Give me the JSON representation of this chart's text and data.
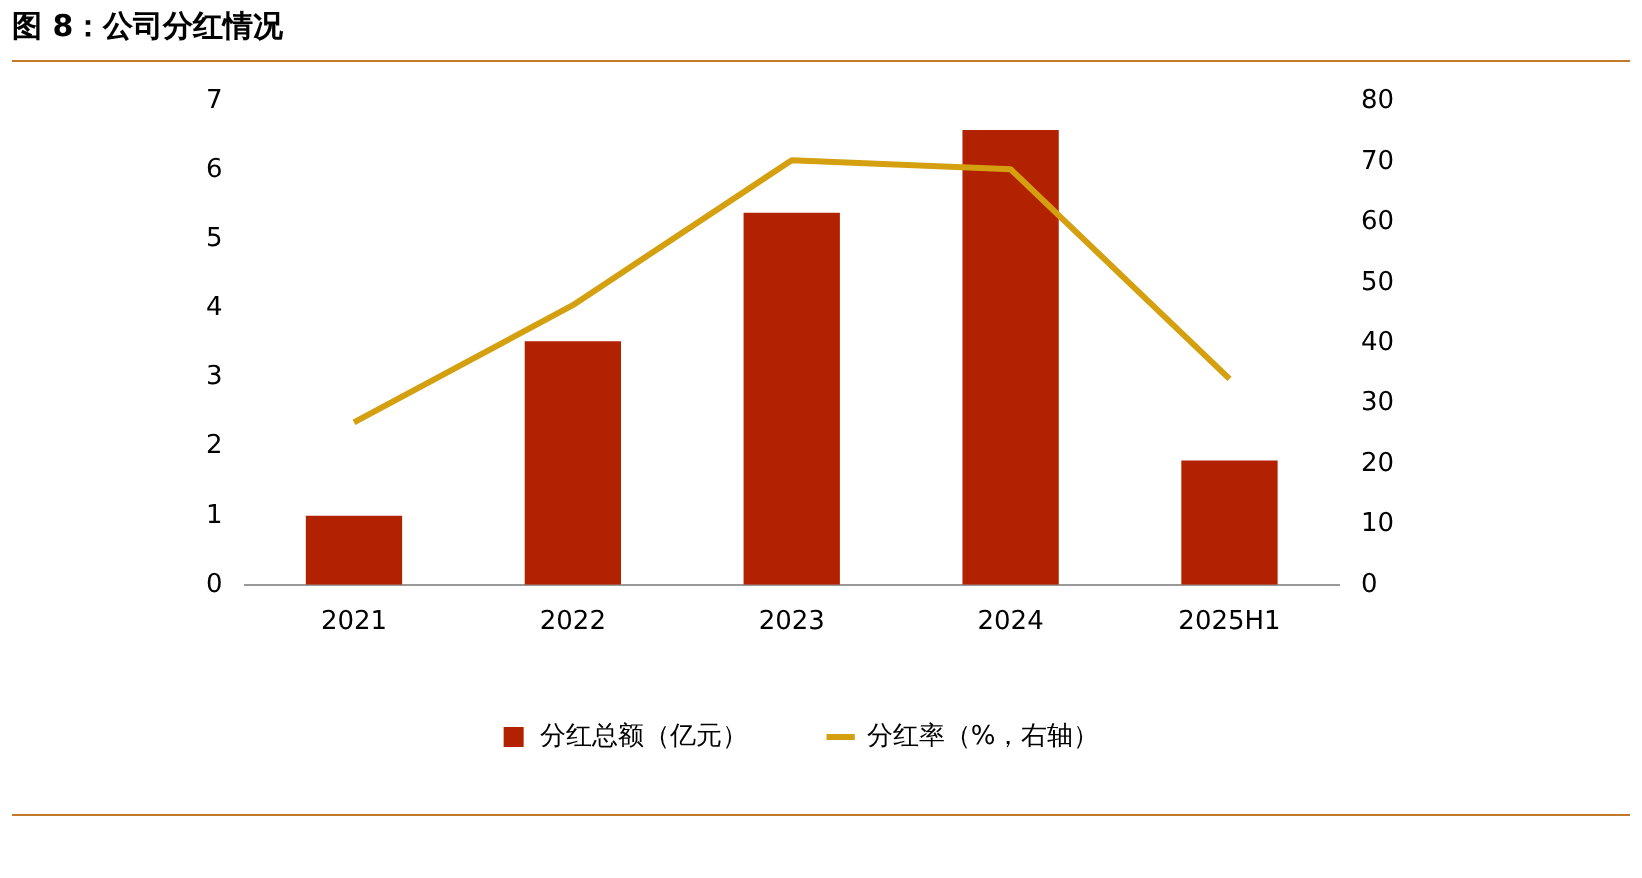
{
  "chart_data": {
    "type": "bar",
    "title": "图 8：公司分红情况",
    "categories": [
      "2021",
      "2022",
      "2023",
      "2024",
      "2025H1"
    ],
    "series": [
      {
        "name": "分红总额（亿元）",
        "color": "#b22200",
        "values": [
          1.0,
          3.53,
          5.39,
          6.59,
          1.8
        ]
      },
      {
        "name": "分红率（%，右轴）",
        "type": "line",
        "axis": "y2",
        "color": "#d4a010",
        "values": [
          26.9,
          46.3,
          70.3,
          68.8,
          34.1
        ]
      }
    ],
    "ylim": [
      0,
      7
    ],
    "yticks": [
      0,
      1,
      2,
      3,
      4,
      5,
      6,
      7
    ],
    "y2lim": [
      0,
      80
    ],
    "y2ticks": [
      0,
      10,
      20,
      30,
      40,
      50,
      60,
      70,
      80
    ],
    "grid": false,
    "legend": "bottom",
    "marker": "none",
    "line_style": "solid"
  }
}
